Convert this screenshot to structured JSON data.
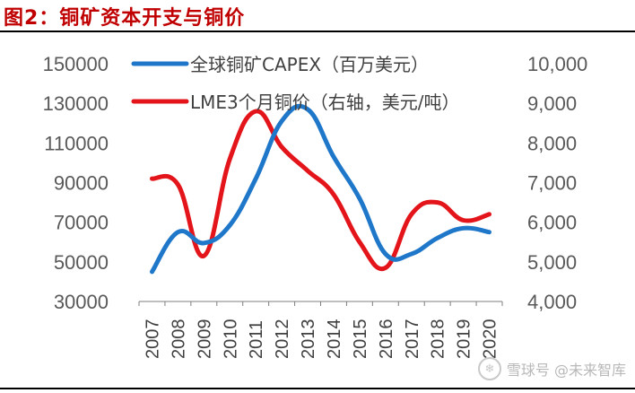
{
  "figure": {
    "title": "图2：铜矿资本开支与铜价"
  },
  "watermark": {
    "text": "雪球号 @未来智库",
    "icon": "snowball-icon"
  },
  "chart_data": {
    "type": "line",
    "categories": [
      "2007",
      "2008",
      "2009",
      "2010",
      "2011",
      "2012",
      "2013",
      "2014",
      "2015",
      "2016",
      "2017",
      "2018",
      "2019",
      "2020"
    ],
    "left_axis": {
      "min": 30000,
      "max": 150000,
      "ticks": [
        "30000",
        "50000",
        "70000",
        "90000",
        "110000",
        "130000",
        "150000"
      ]
    },
    "right_axis": {
      "min": 4000,
      "max": 10000,
      "ticks": [
        "4,000",
        "5,000",
        "6,000",
        "7,000",
        "8,000",
        "9,000",
        "10,000"
      ]
    },
    "series": [
      {
        "name": "全球铜矿CAPEX（百万美元）",
        "axis": "left",
        "color": "#1f77c9",
        "values": [
          45000,
          65000,
          59500,
          68500,
          92000,
          121000,
          127000,
          103000,
          82000,
          54000,
          54000,
          62000,
          67000,
          65000
        ]
      },
      {
        "name": "LME3个月铜价（右轴，美元/吨）",
        "axis": "right",
        "color": "#e3151b",
        "values": [
          7100,
          6950,
          5150,
          7600,
          8800,
          7900,
          7300,
          6700,
          5500,
          4850,
          6200,
          6500,
          6050,
          6200
        ]
      }
    ]
  }
}
